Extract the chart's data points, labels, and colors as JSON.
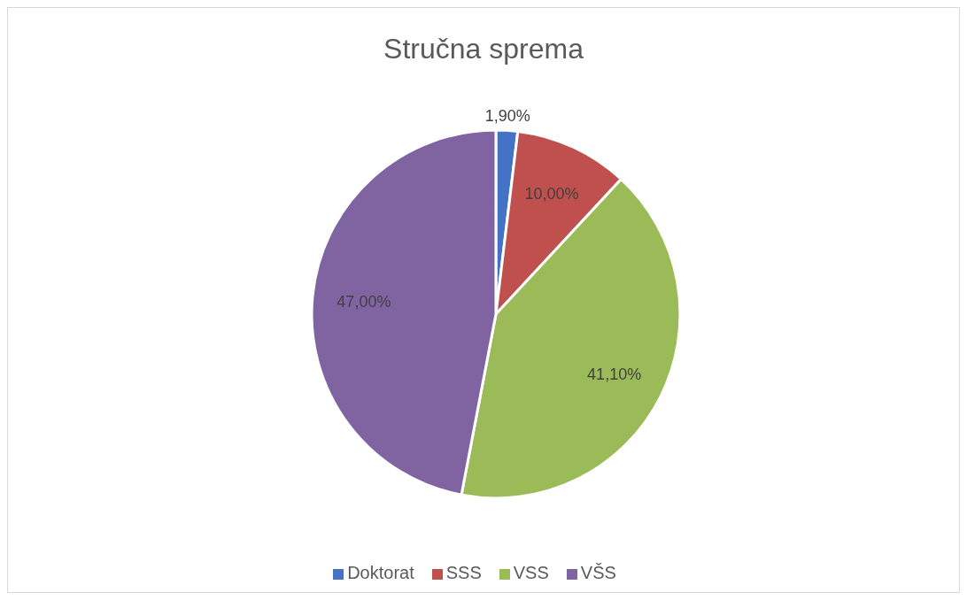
{
  "chart_data": {
    "type": "pie",
    "title": "Stručna sprema",
    "categories": [
      "Doktorat",
      "SSS",
      "VSS",
      "VŠS"
    ],
    "values": [
      1.9,
      10,
      41.1,
      47
    ],
    "colors": [
      "#4472c4",
      "#c0504d",
      "#9bbb59",
      "#8064a2"
    ],
    "value_labels": [
      "1,90%",
      "10,00%",
      "41,10%",
      "47,00%"
    ],
    "legend": "bottom"
  }
}
